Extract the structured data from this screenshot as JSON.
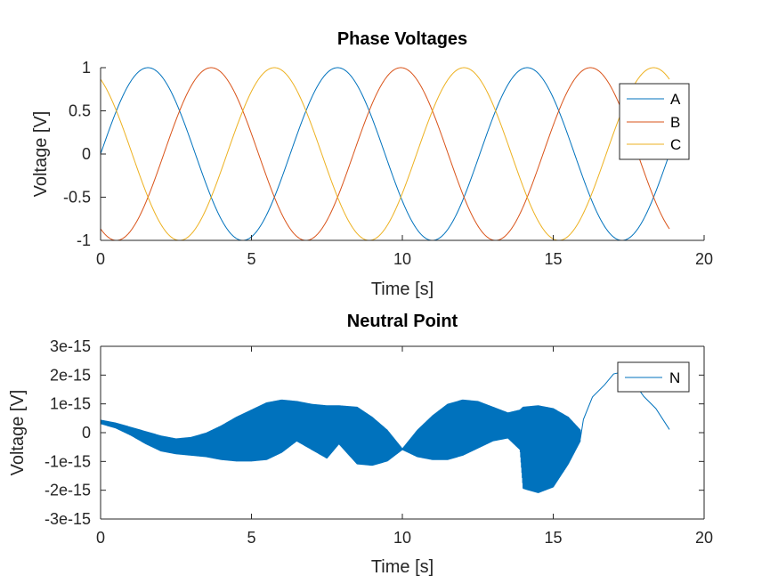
{
  "chart_data": [
    {
      "type": "line",
      "title": "Phase Voltages",
      "xlabel": "Time [s]",
      "ylabel": "Voltage [V]",
      "xlim": [
        0,
        20
      ],
      "ylim": [
        -1,
        1
      ],
      "xticks": [
        "0",
        "5",
        "10",
        "15",
        "20"
      ],
      "yticks": [
        "-1",
        "-0.5",
        "0",
        "0.5",
        "1"
      ],
      "x_range": [
        0,
        18.85
      ],
      "legend": "top-right",
      "series": [
        {
          "name": "A",
          "color": "#0072BD",
          "formula": "sin(t)"
        },
        {
          "name": "B",
          "color": "#D95319",
          "formula": "sin(t - 2*pi/3)"
        },
        {
          "name": "C",
          "color": "#EDB120",
          "formula": "sin(t + 2*pi/3)"
        }
      ]
    },
    {
      "type": "line",
      "title": "Neutral Point",
      "xlabel": "Time [s]",
      "ylabel": "Voltage [V]",
      "xlim": [
        0,
        20
      ],
      "ylim": [
        -3e-15,
        3e-15
      ],
      "xticks": [
        "0",
        "5",
        "10",
        "15",
        "20"
      ],
      "yticks": [
        "-3e-15",
        "-2e-15",
        "-1e-15",
        "0",
        "1e-15",
        "2e-15",
        "3e-15"
      ],
      "legend": "top-right",
      "series": [
        {
          "name": "N",
          "color": "#0072BD",
          "envelope": {
            "t": [
              0,
              0.5,
              1.0,
              1.5,
              2.0,
              2.5,
              3.0,
              3.5,
              4.0,
              4.5,
              5.0,
              5.5,
              6.0,
              6.5,
              7.0,
              7.5,
              7.9,
              8.5,
              9.0,
              9.5,
              10.0,
              10.5,
              11.0,
              11.5,
              12.0,
              12.5,
              13.0,
              13.5,
              13.9,
              14.0,
              14.5,
              15.0,
              15.5,
              15.9
            ],
            "upper": [
              4.5e-16,
              3.5e-16,
              2e-16,
              5e-17,
              -1e-16,
              -2e-16,
              -1.5e-16,
              0.0,
              2.5e-16,
              5.5e-16,
              8e-16,
              1.05e-15,
              1.15e-15,
              1.1e-15,
              1e-15,
              9.5e-16,
              9.5e-16,
              9e-16,
              5.5e-16,
              1e-16,
              -5.5e-16,
              1e-16,
              6e-16,
              1e-15,
              1.15e-15,
              1.1e-15,
              9e-16,
              7e-16,
              8e-16,
              9e-16,
              9.5e-16,
              8.5e-16,
              5.5e-16,
              1e-16
            ],
            "lower": [
              3e-16,
              1.5e-16,
              -1e-16,
              -4e-16,
              -6.5e-16,
              -7.5e-16,
              -8e-16,
              -8.5e-16,
              -9.5e-16,
              -1e-15,
              -1e-15,
              -9.5e-16,
              -7e-16,
              -3e-16,
              -6e-16,
              -9e-16,
              -4e-16,
              -1.1e-15,
              -1.15e-15,
              -1e-15,
              -6e-16,
              -8.5e-16,
              -9.5e-16,
              -9.5e-16,
              -8e-16,
              -5.5e-16,
              -3e-16,
              -2e-16,
              -6e-16,
              -1.95e-15,
              -2.1e-15,
              -1.9e-15,
              -1.1e-15,
              -3e-16
            ]
          },
          "tail": {
            "t": [
              15.9,
              16.0,
              16.3,
              16.7,
              17.0,
              17.3,
              17.6,
              18.0,
              18.4,
              18.85
            ],
            "v": [
              -2.5e-16,
              5e-16,
              1.2e-15,
              1.7e-15,
              2e-15,
              2.15e-15,
              1.8e-15,
              1.3e-15,
              8e-16,
              1.5e-16
            ]
          }
        }
      ]
    }
  ]
}
